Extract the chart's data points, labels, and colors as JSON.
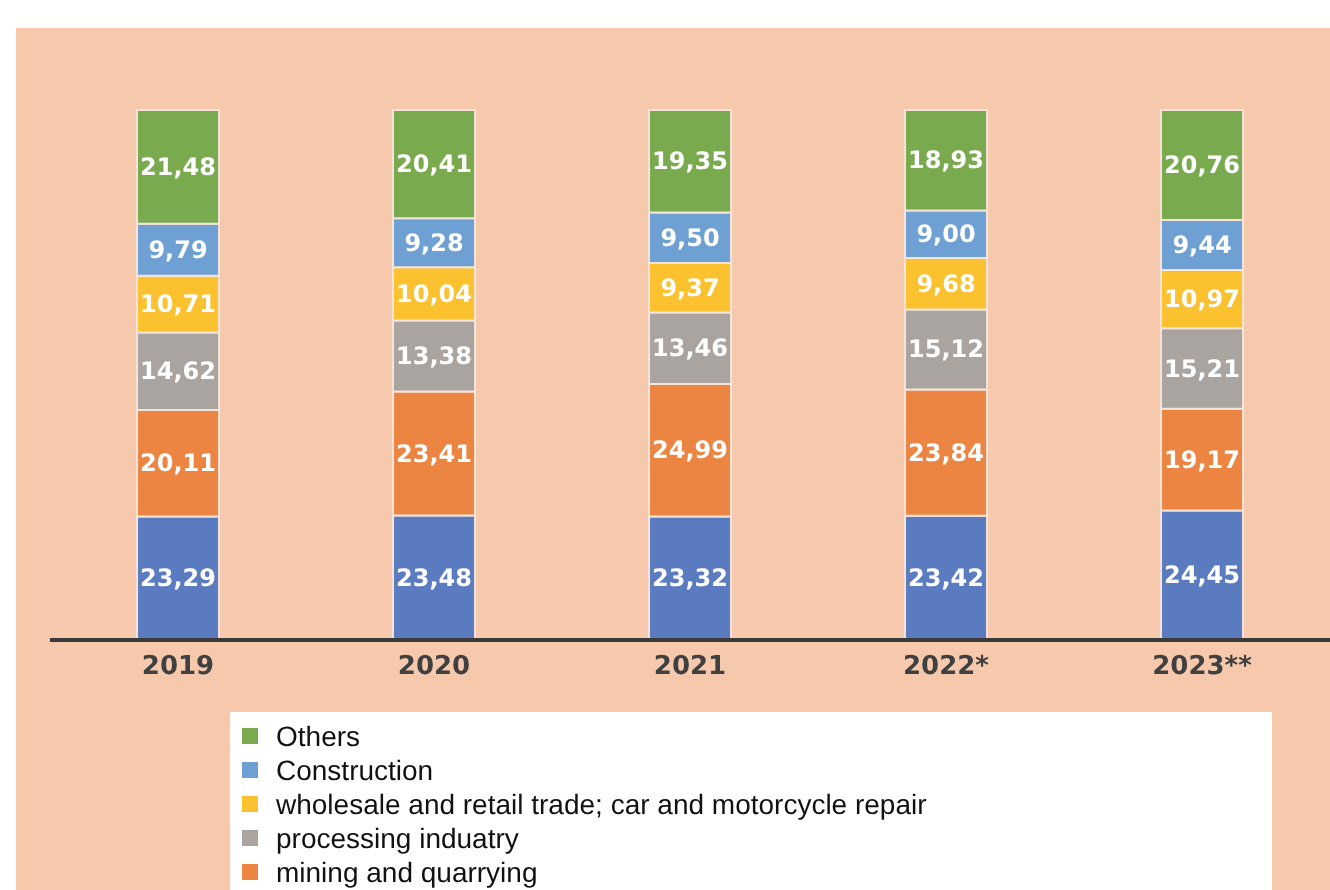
{
  "chart_data": {
    "type": "bar",
    "stacked": true,
    "legend": "bottom",
    "categories": [
      "2019",
      "2020",
      "2021",
      "2022*",
      "2023**"
    ],
    "series": [
      {
        "color": "#5b7bc0",
        "values": [
          23.29,
          23.48,
          23.32,
          23.42,
          24.45
        ],
        "value_labels": [
          "23,29",
          "23,48",
          "23,32",
          "23,42",
          "24,45"
        ]
      },
      {
        "name": "mining and quarrying",
        "color": "#ec8542",
        "values": [
          20.11,
          23.41,
          24.99,
          23.84,
          19.17
        ],
        "value_labels": [
          "20,11",
          "23,41",
          "24,99",
          "23,84",
          "19,17"
        ]
      },
      {
        "name": "processing induatry",
        "color": "#aaa4a1",
        "values": [
          14.62,
          13.38,
          13.46,
          15.12,
          15.21
        ],
        "value_labels": [
          "14,62",
          "13,38",
          "13,46",
          "15,12",
          "15,21"
        ]
      },
      {
        "name": "wholesale and retail trade; car and motorcycle repair",
        "color": "#fbc12e",
        "values": [
          10.71,
          10.04,
          9.37,
          9.68,
          10.97
        ],
        "value_labels": [
          "10,71",
          "10,04",
          "9,37",
          "9,68",
          "10,97"
        ]
      },
      {
        "name": "Construction",
        "color": "#6fa0d3",
        "values": [
          9.79,
          9.28,
          9.5,
          9.0,
          9.44
        ],
        "value_labels": [
          "9,79",
          "9,28",
          "9,50",
          "9,00",
          "9,44"
        ]
      },
      {
        "name": "Others",
        "color": "#79ab4e",
        "values": [
          21.48,
          20.41,
          19.35,
          18.93,
          20.76
        ],
        "value_labels": [
          "21,48",
          "20,41",
          "19,35",
          "18,93",
          "20,76"
        ]
      }
    ]
  }
}
